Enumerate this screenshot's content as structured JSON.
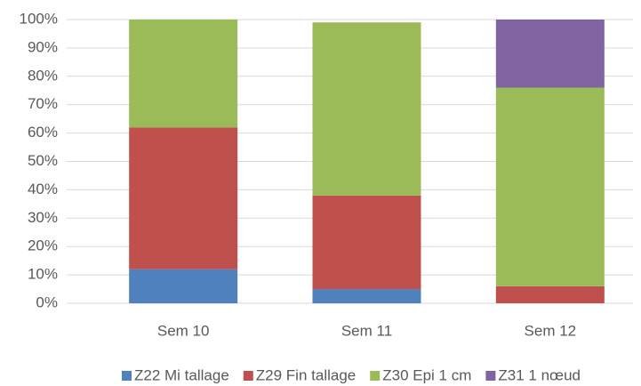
{
  "chart_data": {
    "type": "stacked_bar",
    "categories": [
      "Sem 10",
      "Sem 11",
      "Sem 12"
    ],
    "series": [
      {
        "name": "Z22 Mi tallage",
        "color": "#4f81bd",
        "values": [
          12,
          5,
          0
        ]
      },
      {
        "name": "Z29 Fin tallage",
        "color": "#c0504d",
        "values": [
          50,
          33,
          6
        ]
      },
      {
        "name": "Z30 Epi 1 cm",
        "color": "#9bbb59",
        "values": [
          38,
          61,
          70
        ]
      },
      {
        "name": "Z31 1 nœud",
        "color": "#8064a2",
        "values": [
          0,
          0,
          24
        ]
      }
    ],
    "ylim": [
      0,
      100
    ],
    "yticks": [
      {
        "value": 0,
        "label": "0%"
      },
      {
        "value": 10,
        "label": "10%"
      },
      {
        "value": 20,
        "label": "20%"
      },
      {
        "value": 30,
        "label": "30%"
      },
      {
        "value": 40,
        "label": "40%"
      },
      {
        "value": 50,
        "label": "50%"
      },
      {
        "value": 60,
        "label": "60%"
      },
      {
        "value": 70,
        "label": "70%"
      },
      {
        "value": 80,
        "label": "80%"
      },
      {
        "value": 90,
        "label": "90%"
      },
      {
        "value": 100,
        "label": "100%"
      }
    ],
    "grid": true,
    "legend": "bottom"
  }
}
